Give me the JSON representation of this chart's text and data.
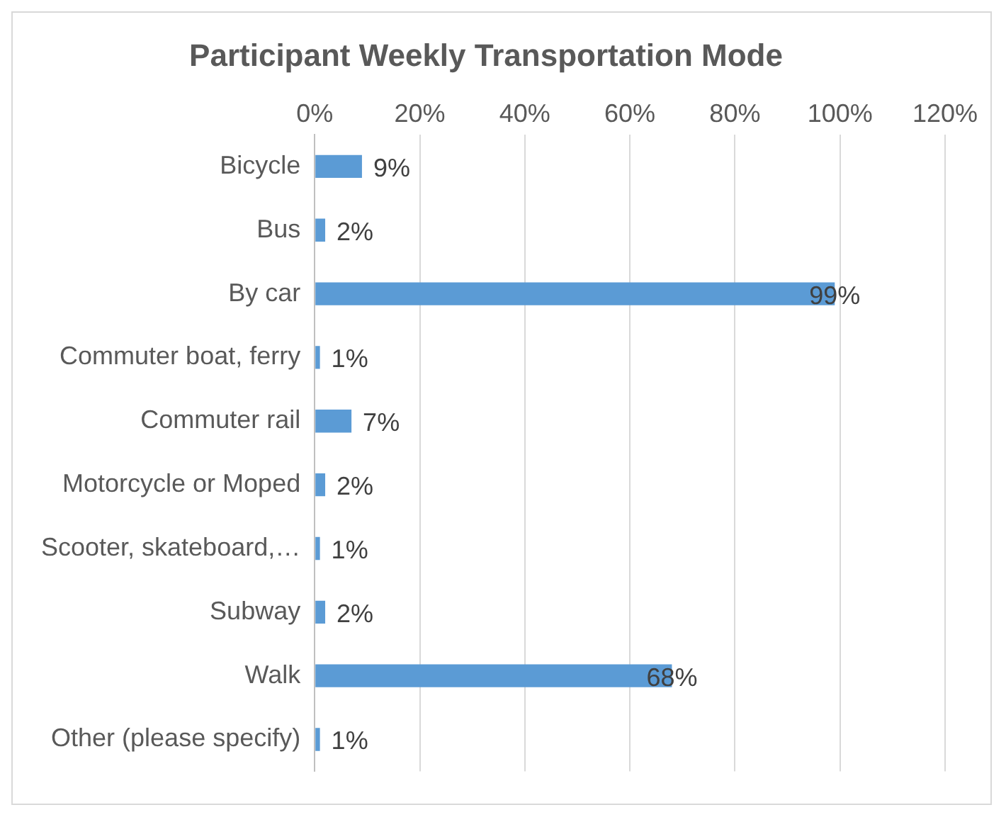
{
  "chart_data": {
    "type": "bar",
    "orientation": "horizontal",
    "title": "Participant Weekly Transportation Mode",
    "categories": [
      "Bicycle",
      "Bus",
      "By car",
      "Commuter boat, ferry",
      "Commuter rail",
      "Motorcycle or Moped",
      "Scooter, skateboard,…",
      "Subway",
      "Walk",
      "Other (please specify)"
    ],
    "values": [
      9,
      2,
      99,
      1,
      7,
      2,
      1,
      2,
      68,
      1
    ],
    "value_labels": [
      "9%",
      "2%",
      "99%",
      "1%",
      "7%",
      "2%",
      "1%",
      "2%",
      "68%",
      "1%"
    ],
    "color": "#5b9bd5",
    "xlim": [
      0,
      120
    ],
    "xticks": [
      {
        "value": 0,
        "label": "0%"
      },
      {
        "value": 20,
        "label": "20%"
      },
      {
        "value": 40,
        "label": "40%"
      },
      {
        "value": 60,
        "label": "60%"
      },
      {
        "value": 80,
        "label": "80%"
      },
      {
        "value": 100,
        "label": "100%"
      },
      {
        "value": 120,
        "label": "120%"
      }
    ],
    "grid": "x",
    "legend": false
  }
}
